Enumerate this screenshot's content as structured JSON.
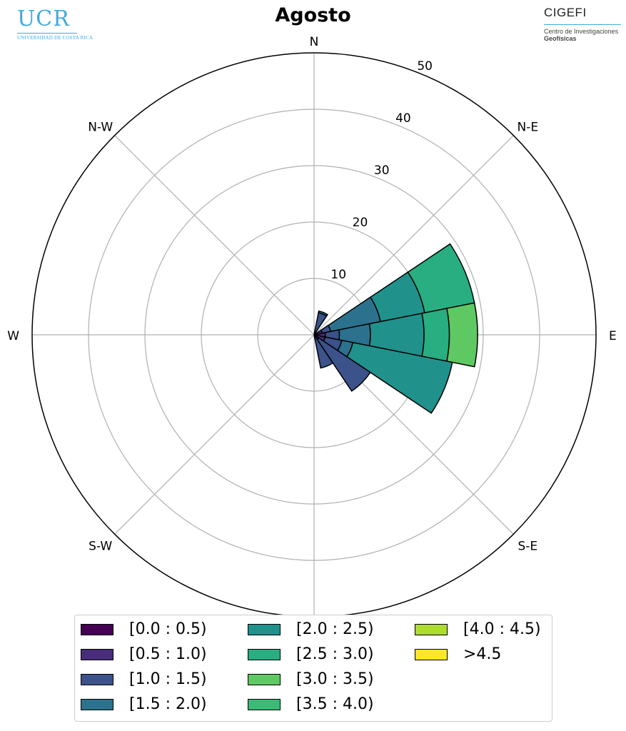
{
  "header": {
    "ucr_logo_text": "UCR",
    "ucr_logo_subtext": "UNIVERSIDAD DE COSTA RICA",
    "cigefi_logo_text": "CIGEFI",
    "cigefi_subtitle_1": "Centro de Investigaciones",
    "cigefi_subtitle_2": "Geofísicas"
  },
  "chart_data": {
    "type": "wind-rose",
    "title": "Agosto",
    "radial_ticks": [
      "10",
      "20",
      "30",
      "40",
      "50"
    ],
    "radial_tick_values": [
      10,
      20,
      30,
      40,
      50
    ],
    "rmax": 50,
    "directions": [
      "N",
      "N-E",
      "E",
      "S-E",
      "S",
      "S-W",
      "W",
      "N-W"
    ],
    "direction_angles": [
      0,
      45,
      90,
      135,
      180,
      225,
      270,
      315
    ],
    "bins": [
      "[0.0 : 0.5)",
      "[0.5 : 1.0)",
      "[1.0 : 1.5)",
      "[1.5 : 2.0)",
      "[2.0 : 2.5)",
      "[2.5 : 3.0)",
      "[3.0 : 3.5)",
      "[3.5 : 4.0)",
      "[4.0 : 4.5)",
      ">4.5"
    ],
    "colors": [
      "#440154",
      "#472d7b",
      "#3b528b",
      "#2c728e",
      "#21918c",
      "#28ae80",
      "#5ec962",
      "#3bbb75",
      "#addc30",
      "#fde725"
    ],
    "grid": true,
    "legend_position": "bottom",
    "sectors": [
      {
        "direction": 22.5,
        "cumulative": [
          0.2,
          0.5,
          4.0,
          4.3
        ]
      },
      {
        "direction": 67.5,
        "cumulative": [
          0.3,
          1.5,
          3.0,
          12.0,
          20.0,
          29.0
        ]
      },
      {
        "direction": 90,
        "cumulative": [
          0.5,
          2.0,
          4.5,
          10.0,
          19.5,
          24.0,
          29.0
        ]
      },
      {
        "direction": 112.5,
        "cumulative": [
          0.4,
          2.0,
          5.0,
          7.0,
          25.0
        ]
      },
      {
        "direction": 135,
        "cumulative": [
          0.3,
          1.0,
          12.0
        ]
      },
      {
        "direction": 157.5,
        "cumulative": [
          0.2,
          0.5,
          6.0
        ]
      }
    ]
  }
}
